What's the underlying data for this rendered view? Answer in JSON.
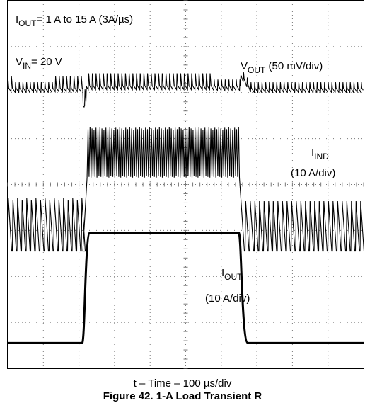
{
  "chart_data": {
    "type": "line",
    "title": "",
    "annotations": {
      "iout_step": {
        "prefix": "I",
        "sub": "OUT",
        "suffix": "= 1 A to 15 A (3A/µs)"
      },
      "vin": {
        "prefix": "V",
        "sub": "IN",
        "suffix": "= 20 V"
      }
    },
    "xlabel": "t – Time – 100  µs/div",
    "figure_caption_partial": "Figure 42. 1-A Load Transient R",
    "grid": {
      "divisions_x": 10,
      "divisions_y": 8,
      "minor_ticks_per_div": 5,
      "dotted": true
    },
    "time_per_div_us": 100,
    "series": [
      {
        "name_prefix": "V",
        "name_sub": "OUT",
        "name_suffix": " (50 mV/div)",
        "scale": "50 mV/div",
        "shape": "ripple",
        "low_load_ripple_div": 0.28,
        "high_load_ripple_div": 0.3,
        "load_step_offset_div": 0.05,
        "unload_overshoot_div": 0.3,
        "baseline_div_from_top": 1.9,
        "step_up_div": 2.15,
        "step_down_div": 6.55
      },
      {
        "name_prefix": "I",
        "name_sub": "IND",
        "name_suffix": "",
        "scale_label": "(10 A/div)",
        "shape": "switching",
        "low_current_div": 5.45,
        "low_peak_div": 4.3,
        "high_band_top_div": 2.75,
        "high_band_bottom_div": 3.85,
        "step_up_div": 2.15,
        "step_down_div": 6.55
      },
      {
        "name_prefix": "I",
        "name_sub": "OUT",
        "name_suffix": "",
        "scale_label": "(10 A/div)",
        "shape": "step",
        "low_level_div": 7.45,
        "high_level_div": 5.05,
        "step_up_div": 2.15,
        "step_down_div": 6.55
      }
    ]
  }
}
